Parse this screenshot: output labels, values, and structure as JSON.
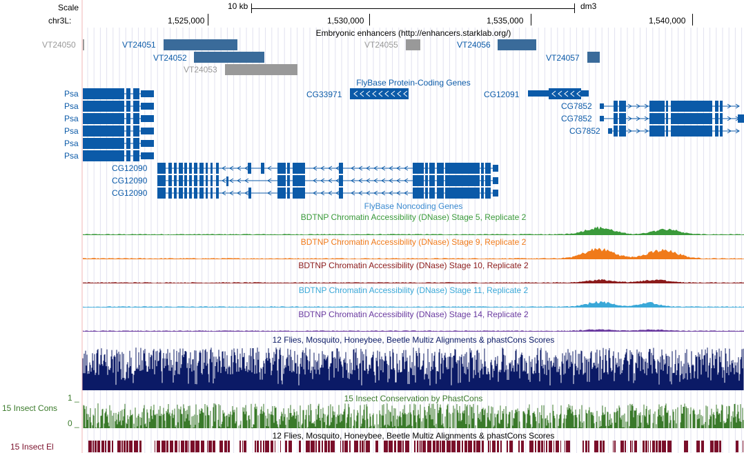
{
  "browser": {
    "scale_label": "Scale",
    "scale_length": "10 kb",
    "assembly": "dm3",
    "chrom_label": "chr3L:",
    "positions": [
      "1,525,000",
      "1,530,000",
      "1,535,000",
      "1,540,000"
    ]
  },
  "tracks": {
    "enhancers": {
      "title": "Embryonic enhancers (http://enhancers.starklab.org/)",
      "items": [
        "VT24050",
        "VT24051",
        "VT24052",
        "VT24053",
        "VT24055",
        "VT24056",
        "VT24057"
      ]
    },
    "flybase_coding": {
      "title": "FlyBase Protein-Coding Genes",
      "genes": [
        "CG33971",
        "CG12091",
        "Psa",
        "CG7852",
        "CG12090"
      ]
    },
    "flybase_noncoding": {
      "title": "FlyBase Noncoding Genes"
    },
    "dnase": [
      {
        "title": "BDTNP Chromatin Accessibility (DNase) Stage 5, Replicate 2",
        "color": "#3a9a3a"
      },
      {
        "title": "BDTNP Chromatin Accessibility (DNase) Stage 9, Replicate 2",
        "color": "#f07a1a"
      },
      {
        "title": "BDTNP Chromatin Accessibility (DNase) Stage 10, Replicate 2",
        "color": "#8b1a1a"
      },
      {
        "title": "BDTNP Chromatin Accessibility (DNase) Stage 11, Replicate 2",
        "color": "#3aa8d8"
      },
      {
        "title": "BDTNP Chromatin Accessibility (DNase) Stage 14, Replicate 2",
        "color": "#6a3aa0"
      }
    ],
    "multiz": {
      "title": "12 Flies, Mosquito, Honeybee, Beetle Multiz Alignments & phastCons Scores",
      "color": "#0b1a66"
    },
    "phastcons": {
      "title": "15 Insect Conservation by PhastCons",
      "side_label": "15 Insect Cons",
      "axis_max": "1 _",
      "axis_min": "0 _",
      "color": "#3a7a2a"
    },
    "elements": {
      "title": "12 Flies, Mosquito, Honeybee, Beetle Multiz Alignments & phastCons Scores",
      "side_label": "15 Insect El",
      "color": "#7a0f2a"
    }
  },
  "colors": {
    "gene": "#0b5aa8",
    "gene_dark": "#2b6aa0",
    "gray": "#999999"
  }
}
